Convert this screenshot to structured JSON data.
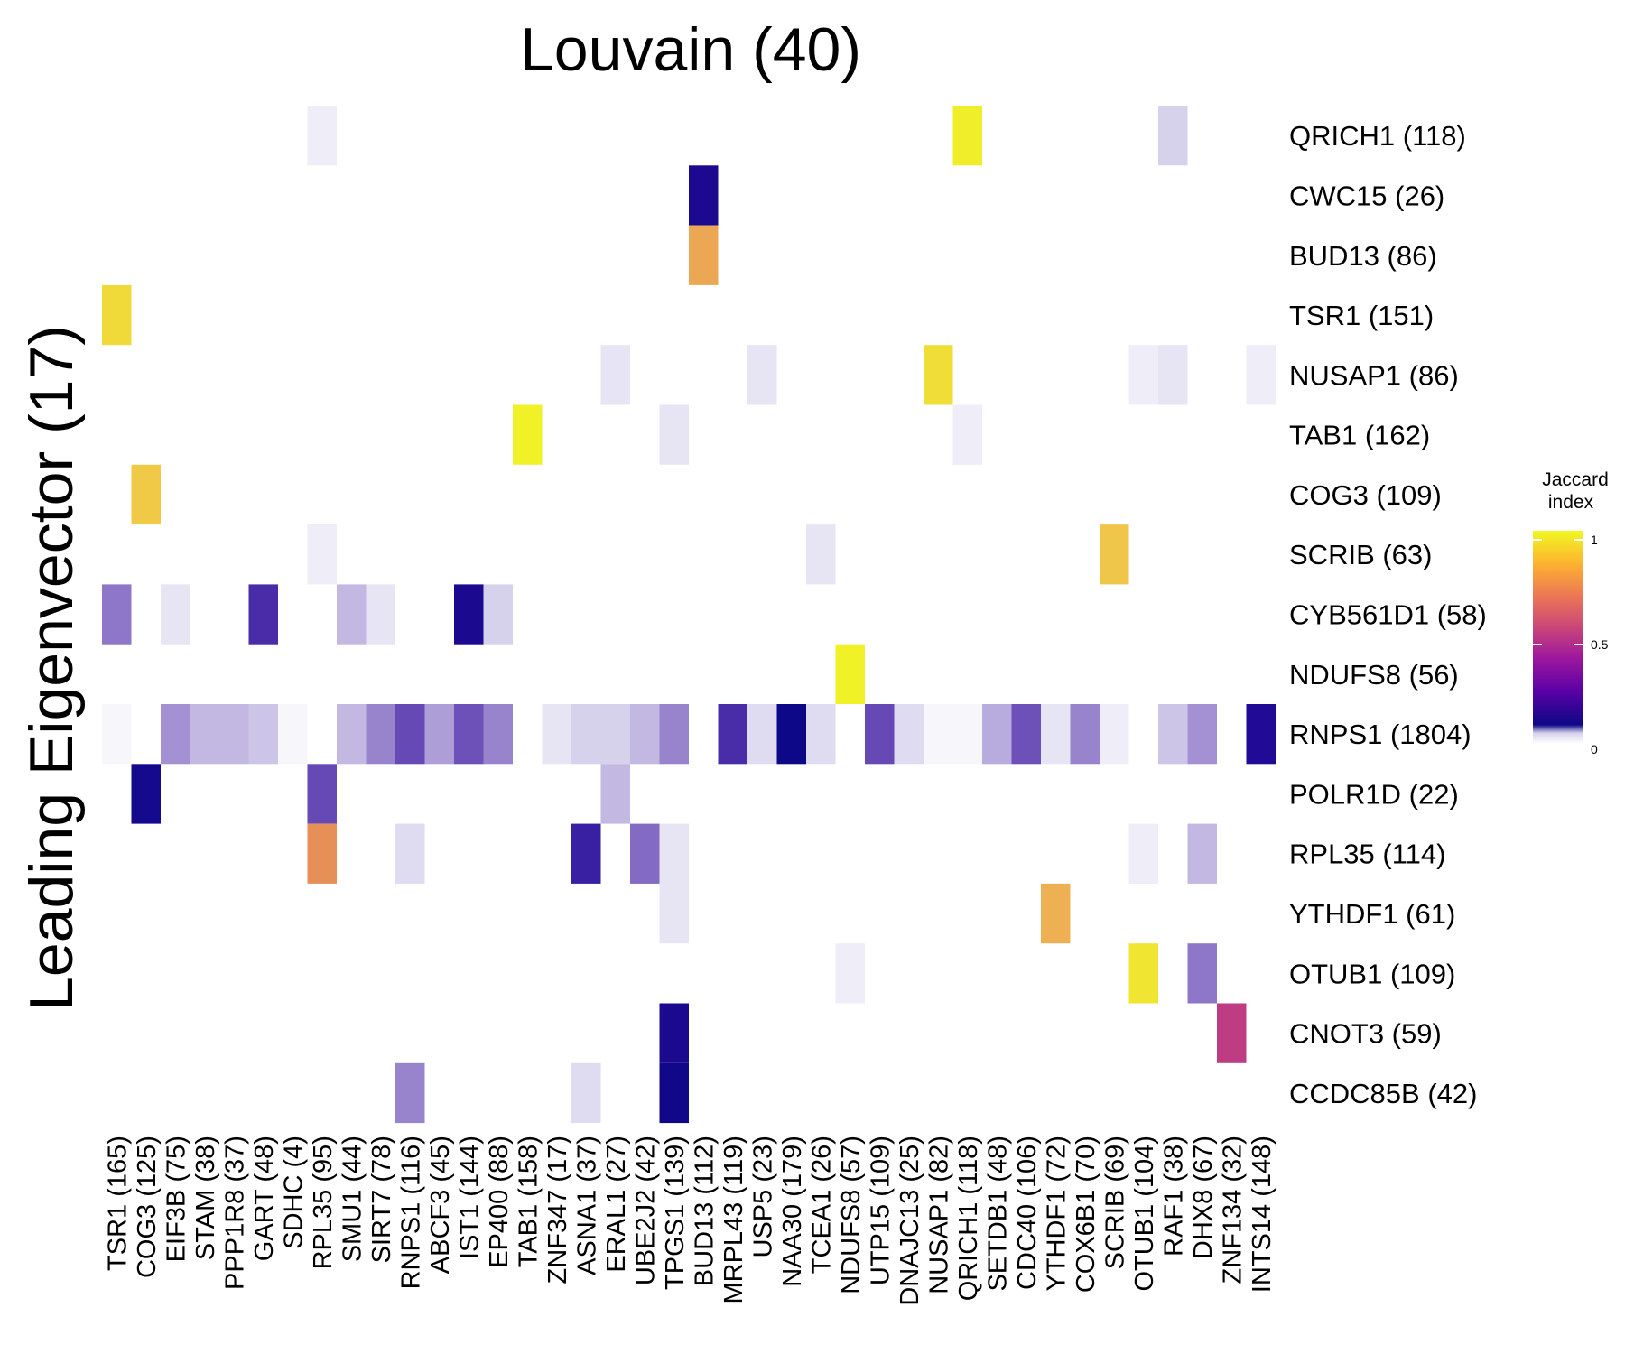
{
  "chart_data": {
    "type": "heatmap",
    "title": "Louvain (40)",
    "ylabel": "Leading Eigenvector (17)",
    "columns": [
      "TSR1 (165)",
      "COG3 (125)",
      "EIF3B (75)",
      "STAM (38)",
      "PPP1R8 (37)",
      "GART (48)",
      "SDHC (4)",
      "RPL35 (95)",
      "SMU1 (44)",
      "SIRT7 (78)",
      "RNPS1 (116)",
      "ABCF3 (45)",
      "IST1 (144)",
      "EP400 (88)",
      "TAB1 (158)",
      "ZNF347 (17)",
      "ASNA1 (37)",
      "ERAL1 (27)",
      "UBE2J2 (42)",
      "TPGS1 (139)",
      "BUD13 (112)",
      "MRPL43 (119)",
      "USP5 (23)",
      "NAA30 (179)",
      "TCEA1 (26)",
      "NDUFS8 (57)",
      "UTP15 (109)",
      "DNAJC13 (25)",
      "NUSAP1 (82)",
      "QRICH1 (118)",
      "SETDB1 (48)",
      "CDC40 (106)",
      "YTHDF1 (72)",
      "COX6B1 (70)",
      "SCRIB (69)",
      "OTUB1 (104)",
      "RAF1 (38)",
      "DHX8 (67)",
      "ZNF134 (32)",
      "INTS14 (148)"
    ],
    "rows": [
      "QRICH1 (118)",
      "CWC15 (26)",
      "BUD13 (86)",
      "TSR1 (151)",
      "NUSAP1 (86)",
      "TAB1 (162)",
      "COG3 (109)",
      "SCRIB (63)",
      "CYB561D1 (58)",
      "NDUFS8 (56)",
      "RNPS1 (1804)",
      "POLR1D (22)",
      "RPL35 (114)",
      "YTHDF1 (61)",
      "OTUB1 (109)",
      "CNOT3 (59)",
      "CCDC85B (42)"
    ],
    "cells": [
      {
        "row": "QRICH1 (118)",
        "col": "RPL35 (95)",
        "value": 0.02
      },
      {
        "row": "QRICH1 (118)",
        "col": "QRICH1 (118)",
        "value": 0.97
      },
      {
        "row": "QRICH1 (118)",
        "col": "RAF1 (38)",
        "value": 0.05
      },
      {
        "row": "CWC15 (26)",
        "col": "BUD13 (112)",
        "value": 0.3
      },
      {
        "row": "BUD13 (86)",
        "col": "BUD13 (112)",
        "value": 0.8
      },
      {
        "row": "TSR1 (151)",
        "col": "TSR1 (165)",
        "value": 0.92
      },
      {
        "row": "NUSAP1 (86)",
        "col": "ERAL1 (27)",
        "value": 0.03
      },
      {
        "row": "NUSAP1 (86)",
        "col": "USP5 (23)",
        "value": 0.03
      },
      {
        "row": "NUSAP1 (86)",
        "col": "NUSAP1 (82)",
        "value": 0.93
      },
      {
        "row": "NUSAP1 (86)",
        "col": "OTUB1 (104)",
        "value": 0.02
      },
      {
        "row": "NUSAP1 (86)",
        "col": "RAF1 (38)",
        "value": 0.03
      },
      {
        "row": "NUSAP1 (86)",
        "col": "INTS14 (148)",
        "value": 0.02
      },
      {
        "row": "TAB1 (162)",
        "col": "TAB1 (158)",
        "value": 0.98
      },
      {
        "row": "TAB1 (162)",
        "col": "TPGS1 (139)",
        "value": 0.03
      },
      {
        "row": "TAB1 (162)",
        "col": "QRICH1 (118)",
        "value": 0.02
      },
      {
        "row": "COG3 (109)",
        "col": "COG3 (125)",
        "value": 0.88
      },
      {
        "row": "SCRIB (63)",
        "col": "RPL35 (95)",
        "value": 0.02
      },
      {
        "row": "SCRIB (63)",
        "col": "TCEA1 (26)",
        "value": 0.03
      },
      {
        "row": "SCRIB (63)",
        "col": "SCRIB (69)",
        "value": 0.87
      },
      {
        "row": "CYB561D1 (58)",
        "col": "TSR1 (165)",
        "value": 0.12
      },
      {
        "row": "CYB561D1 (58)",
        "col": "EIF3B (75)",
        "value": 0.03
      },
      {
        "row": "CYB561D1 (58)",
        "col": "GART (48)",
        "value": 0.2
      },
      {
        "row": "CYB561D1 (58)",
        "col": "SMU1 (44)",
        "value": 0.07
      },
      {
        "row": "CYB561D1 (58)",
        "col": "SIRT7 (78)",
        "value": 0.03
      },
      {
        "row": "CYB561D1 (58)",
        "col": "IST1 (144)",
        "value": 0.3
      },
      {
        "row": "CYB561D1 (58)",
        "col": "EP400 (88)",
        "value": 0.05
      },
      {
        "row": "NDUFS8 (56)",
        "col": "NDUFS8 (57)",
        "value": 0.98
      },
      {
        "row": "RNPS1 (1804)",
        "col": "TSR1 (165)",
        "value": 0.01
      },
      {
        "row": "RNPS1 (1804)",
        "col": "EIF3B (75)",
        "value": 0.1
      },
      {
        "row": "RNPS1 (1804)",
        "col": "STAM (38)",
        "value": 0.07
      },
      {
        "row": "RNPS1 (1804)",
        "col": "PPP1R8 (37)",
        "value": 0.07
      },
      {
        "row": "RNPS1 (1804)",
        "col": "GART (48)",
        "value": 0.06
      },
      {
        "row": "RNPS1 (1804)",
        "col": "SDHC (4)",
        "value": 0.01
      },
      {
        "row": "RNPS1 (1804)",
        "col": "SMU1 (44)",
        "value": 0.07
      },
      {
        "row": "RNPS1 (1804)",
        "col": "SIRT7 (78)",
        "value": 0.11
      },
      {
        "row": "RNPS1 (1804)",
        "col": "RNPS1 (116)",
        "value": 0.16
      },
      {
        "row": "RNPS1 (1804)",
        "col": "ABCF3 (45)",
        "value": 0.09
      },
      {
        "row": "RNPS1 (1804)",
        "col": "IST1 (144)",
        "value": 0.15
      },
      {
        "row": "RNPS1 (1804)",
        "col": "EP400 (88)",
        "value": 0.11
      },
      {
        "row": "RNPS1 (1804)",
        "col": "ZNF347 (17)",
        "value": 0.03
      },
      {
        "row": "RNPS1 (1804)",
        "col": "ASNA1 (37)",
        "value": 0.05
      },
      {
        "row": "RNPS1 (1804)",
        "col": "ERAL1 (27)",
        "value": 0.05
      },
      {
        "row": "RNPS1 (1804)",
        "col": "UBE2J2 (42)",
        "value": 0.07
      },
      {
        "row": "RNPS1 (1804)",
        "col": "TPGS1 (139)",
        "value": 0.11
      },
      {
        "row": "RNPS1 (1804)",
        "col": "MRPL43 (119)",
        "value": 0.2
      },
      {
        "row": "RNPS1 (1804)",
        "col": "USP5 (23)",
        "value": 0.04
      },
      {
        "row": "RNPS1 (1804)",
        "col": "NAA30 (179)",
        "value": 0.38
      },
      {
        "row": "RNPS1 (1804)",
        "col": "TCEA1 (26)",
        "value": 0.04
      },
      {
        "row": "RNPS1 (1804)",
        "col": "UTP15 (109)",
        "value": 0.16
      },
      {
        "row": "RNPS1 (1804)",
        "col": "DNAJC13 (25)",
        "value": 0.04
      },
      {
        "row": "RNPS1 (1804)",
        "col": "NUSAP1 (82)",
        "value": 0.01
      },
      {
        "row": "RNPS1 (1804)",
        "col": "QRICH1 (118)",
        "value": 0.01
      },
      {
        "row": "RNPS1 (1804)",
        "col": "SETDB1 (48)",
        "value": 0.08
      },
      {
        "row": "RNPS1 (1804)",
        "col": "CDC40 (106)",
        "value": 0.15
      },
      {
        "row": "RNPS1 (1804)",
        "col": "YTHDF1 (72)",
        "value": 0.03
      },
      {
        "row": "RNPS1 (1804)",
        "col": "COX6B1 (70)",
        "value": 0.11
      },
      {
        "row": "RNPS1 (1804)",
        "col": "SCRIB (69)",
        "value": 0.02
      },
      {
        "row": "RNPS1 (1804)",
        "col": "RAF1 (38)",
        "value": 0.06
      },
      {
        "row": "RNPS1 (1804)",
        "col": "DHX8 (67)",
        "value": 0.1
      },
      {
        "row": "RNPS1 (1804)",
        "col": "INTS14 (148)",
        "value": 0.26
      },
      {
        "row": "POLR1D (22)",
        "col": "COG3 (125)",
        "value": 0.33
      },
      {
        "row": "POLR1D (22)",
        "col": "RPL35 (95)",
        "value": 0.16
      },
      {
        "row": "POLR1D (22)",
        "col": "ERAL1 (27)",
        "value": 0.07
      },
      {
        "row": "RPL35 (114)",
        "col": "RPL35 (95)",
        "value": 0.75
      },
      {
        "row": "RPL35 (114)",
        "col": "RNPS1 (116)",
        "value": 0.04
      },
      {
        "row": "RPL35 (114)",
        "col": "ASNA1 (37)",
        "value": 0.22
      },
      {
        "row": "RPL35 (114)",
        "col": "UBE2J2 (42)",
        "value": 0.13
      },
      {
        "row": "RPL35 (114)",
        "col": "TPGS1 (139)",
        "value": 0.03
      },
      {
        "row": "RPL35 (114)",
        "col": "OTUB1 (104)",
        "value": 0.02
      },
      {
        "row": "RPL35 (114)",
        "col": "DHX8 (67)",
        "value": 0.07
      },
      {
        "row": "YTHDF1 (61)",
        "col": "TPGS1 (139)",
        "value": 0.03
      },
      {
        "row": "YTHDF1 (61)",
        "col": "YTHDF1 (72)",
        "value": 0.82
      },
      {
        "row": "OTUB1 (109)",
        "col": "NDUFS8 (57)",
        "value": 0.02
      },
      {
        "row": "OTUB1 (109)",
        "col": "OTUB1 (104)",
        "value": 0.95
      },
      {
        "row": "OTUB1 (109)",
        "col": "DHX8 (67)",
        "value": 0.12
      },
      {
        "row": "CNOT3 (59)",
        "col": "TPGS1 (139)",
        "value": 0.3
      },
      {
        "row": "CNOT3 (59)",
        "col": "ZNF134 (32)",
        "value": 0.55
      },
      {
        "row": "CCDC85B (42)",
        "col": "RNPS1 (116)",
        "value": 0.11
      },
      {
        "row": "CCDC85B (42)",
        "col": "ASNA1 (37)",
        "value": 0.04
      },
      {
        "row": "CCDC85B (42)",
        "col": "TPGS1 (139)",
        "value": 0.36
      }
    ],
    "legend": {
      "title_lines": [
        "Jaccard",
        "index"
      ],
      "ticks": [
        {
          "value": 1,
          "label": "1"
        },
        {
          "value": 0.5,
          "label": "0.5"
        },
        {
          "value": 0,
          "label": "0"
        }
      ],
      "range": [
        0,
        1
      ],
      "placement": "right",
      "colormap": "plasma (white at 0)"
    }
  }
}
